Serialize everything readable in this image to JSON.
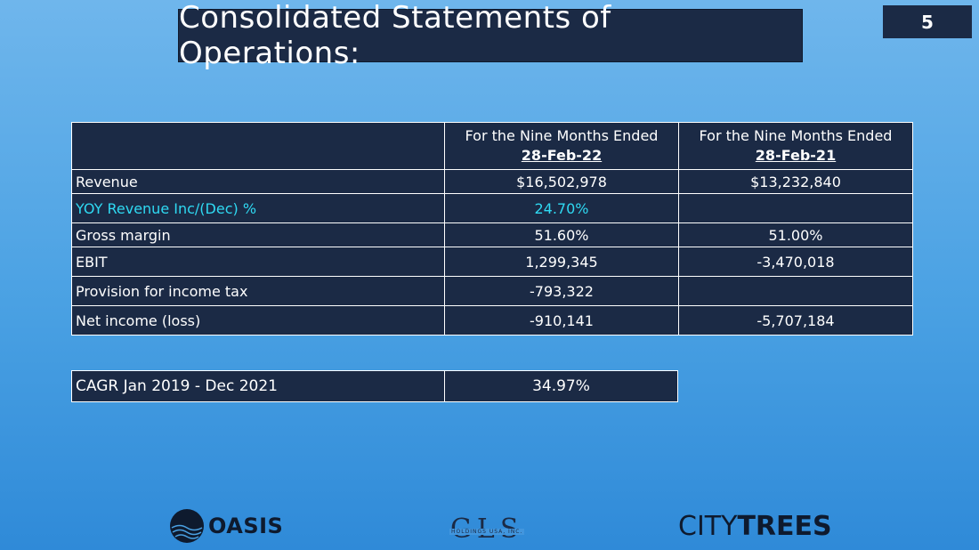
{
  "slide": {
    "title": "Consolidated Statements of Operations:",
    "page_number": "5"
  },
  "colors": {
    "background": "#4aa1e3",
    "panel": "#1b2a45",
    "accent": "#2fd9f2"
  },
  "operations_table": {
    "columns": [
      {
        "heading": "For the Nine Months Ended",
        "date": "28-Feb-22"
      },
      {
        "heading": "For the Nine Months Ended",
        "date": "28-Feb-21"
      }
    ],
    "rows": [
      {
        "label": "Revenue",
        "v1": "$16,502,978",
        "v2": "$13,232,840"
      },
      {
        "label": "YOY Revenue Inc/(Dec) %",
        "v1": "24.70%",
        "v2": ""
      },
      {
        "label": "Gross margin",
        "v1": "51.60%",
        "v2": "51.00%"
      },
      {
        "label": "EBIT",
        "v1": "1,299,345",
        "v2": "-3,470,018"
      },
      {
        "label": "Provision for income tax",
        "v1": "-793,322",
        "v2": ""
      },
      {
        "label": "Net income (loss)",
        "v1": "-910,141",
        "v2": "-5,707,184"
      }
    ]
  },
  "cagr_table": {
    "label": "CAGR Jan 2019 - Dec 2021",
    "value": "34.97%"
  },
  "logos": {
    "oasis": "OASIS",
    "gls_mark": "GLS",
    "gls_sub": "HOLDINGS USA, INC.",
    "citytrees_thin": "CITY",
    "citytrees_bold": "TREES"
  }
}
